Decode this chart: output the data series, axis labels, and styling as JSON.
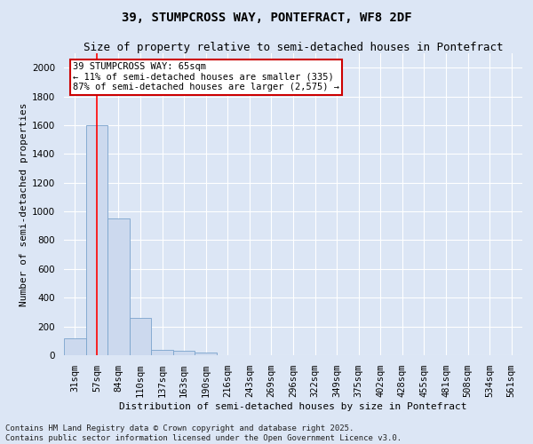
{
  "title": "39, STUMPCROSS WAY, PONTEFRACT, WF8 2DF",
  "subtitle": "Size of property relative to semi-detached houses in Pontefract",
  "xlabel": "Distribution of semi-detached houses by size in Pontefract",
  "ylabel": "Number of semi-detached properties",
  "bar_labels": [
    "31sqm",
    "57sqm",
    "84sqm",
    "110sqm",
    "137sqm",
    "163sqm",
    "190sqm",
    "216sqm",
    "243sqm",
    "269sqm",
    "296sqm",
    "322sqm",
    "349sqm",
    "375sqm",
    "402sqm",
    "428sqm",
    "455sqm",
    "481sqm",
    "508sqm",
    "534sqm",
    "561sqm"
  ],
  "bar_heights": [
    120,
    1600,
    950,
    260,
    40,
    30,
    20,
    0,
    0,
    0,
    0,
    0,
    0,
    0,
    0,
    0,
    0,
    0,
    0,
    0,
    0
  ],
  "bar_color": "#ccd9ee",
  "bar_edge_color": "#7aa3cc",
  "red_line_x": 1.0,
  "ylim": [
    0,
    2100
  ],
  "yticks": [
    0,
    200,
    400,
    600,
    800,
    1000,
    1200,
    1400,
    1600,
    1800,
    2000
  ],
  "annotation_title": "39 STUMPCROSS WAY: 65sqm",
  "annotation_line2": "← 11% of semi-detached houses are smaller (335)",
  "annotation_line3": "87% of semi-detached houses are larger (2,575) →",
  "annotation_box_color": "#ffffff",
  "annotation_border_color": "#cc0000",
  "footer_line1": "Contains HM Land Registry data © Crown copyright and database right 2025.",
  "footer_line2": "Contains public sector information licensed under the Open Government Licence v3.0.",
  "background_color": "#dce6f5",
  "plot_background_color": "#dce6f5",
  "grid_color": "#ffffff",
  "title_fontsize": 10,
  "subtitle_fontsize": 9,
  "axis_label_fontsize": 8,
  "tick_fontsize": 7.5,
  "footer_fontsize": 6.5,
  "annotation_fontsize": 7.5
}
